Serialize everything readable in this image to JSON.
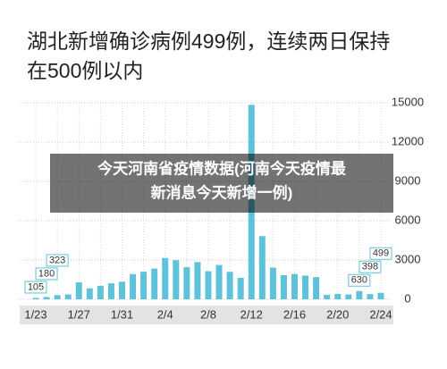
{
  "chart_data": {
    "type": "bar",
    "title": [
      "湖北新增确诊病例499例，连续两日保持",
      "在500例以内"
    ],
    "categories": [
      "1/23",
      null,
      null,
      null,
      "1/27",
      null,
      null,
      null,
      "1/31",
      null,
      null,
      null,
      "2/4",
      null,
      null,
      null,
      "2/8",
      null,
      null,
      null,
      "2/12",
      null,
      null,
      null,
      "2/16",
      null,
      null,
      null,
      "2/20",
      null,
      null,
      null,
      "2/24"
    ],
    "values": [
      105,
      180,
      323,
      371,
      1291,
      840,
      1032,
      1220,
      1347,
      1921,
      2103,
      2345,
      3156,
      2987,
      2447,
      2841,
      2147,
      2618,
      2097,
      1638,
      14840,
      4823,
      2420,
      1843,
      1933,
      1807,
      1693,
      349,
      411,
      366,
      630,
      398,
      499
    ],
    "value_labels": [
      "105",
      "180",
      "323",
      null,
      null,
      null,
      null,
      null,
      null,
      null,
      null,
      null,
      null,
      null,
      null,
      null,
      null,
      null,
      null,
      null,
      null,
      null,
      null,
      null,
      null,
      null,
      null,
      null,
      null,
      null,
      "630",
      "398",
      "499"
    ],
    "color": "#5ec3da",
    "ylim": [
      0,
      15000
    ],
    "yticks": [
      0,
      3000,
      6000,
      9000,
      12000,
      15000
    ],
    "grid": true
  },
  "overlay": {
    "lines": [
      "今天河南省疫情数据(河南今天疫情最",
      "新消息今天新增一例)"
    ]
  }
}
